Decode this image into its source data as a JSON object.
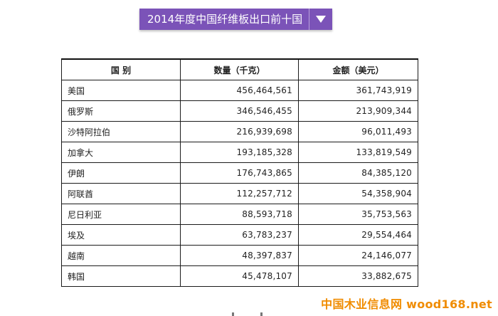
{
  "title": "2014年度中国纤维板出口前十国",
  "table": {
    "headers": [
      "国  别",
      "数量（千克）",
      "金额（美元）"
    ],
    "rows": [
      [
        "美国",
        "456,464,561",
        "361,743,919"
      ],
      [
        "俄罗斯",
        "346,546,455",
        "213,909,344"
      ],
      [
        "沙特阿拉伯",
        "216,939,698",
        "96,011,493"
      ],
      [
        "加拿大",
        "193,185,328",
        "133,819,549"
      ],
      [
        "伊朗",
        "176,743,865",
        "84,385,120"
      ],
      [
        "阿联酋",
        "112,257,712",
        "54,358,904"
      ],
      [
        "尼日利亚",
        "88,593,718",
        "35,753,563"
      ],
      [
        "埃及",
        "63,783,237",
        "29,554,464"
      ],
      [
        "越南",
        "48,397,837",
        "24,146,077"
      ],
      [
        "韩国",
        "45,478,107",
        "33,882,675"
      ]
    ]
  },
  "watermark": "中国木业信息网 wood168.net",
  "icons": {
    "dropdown": "triangle-down-icon"
  },
  "colors": {
    "title_bg": "#7b53b8",
    "watermark": "#f08c00"
  }
}
